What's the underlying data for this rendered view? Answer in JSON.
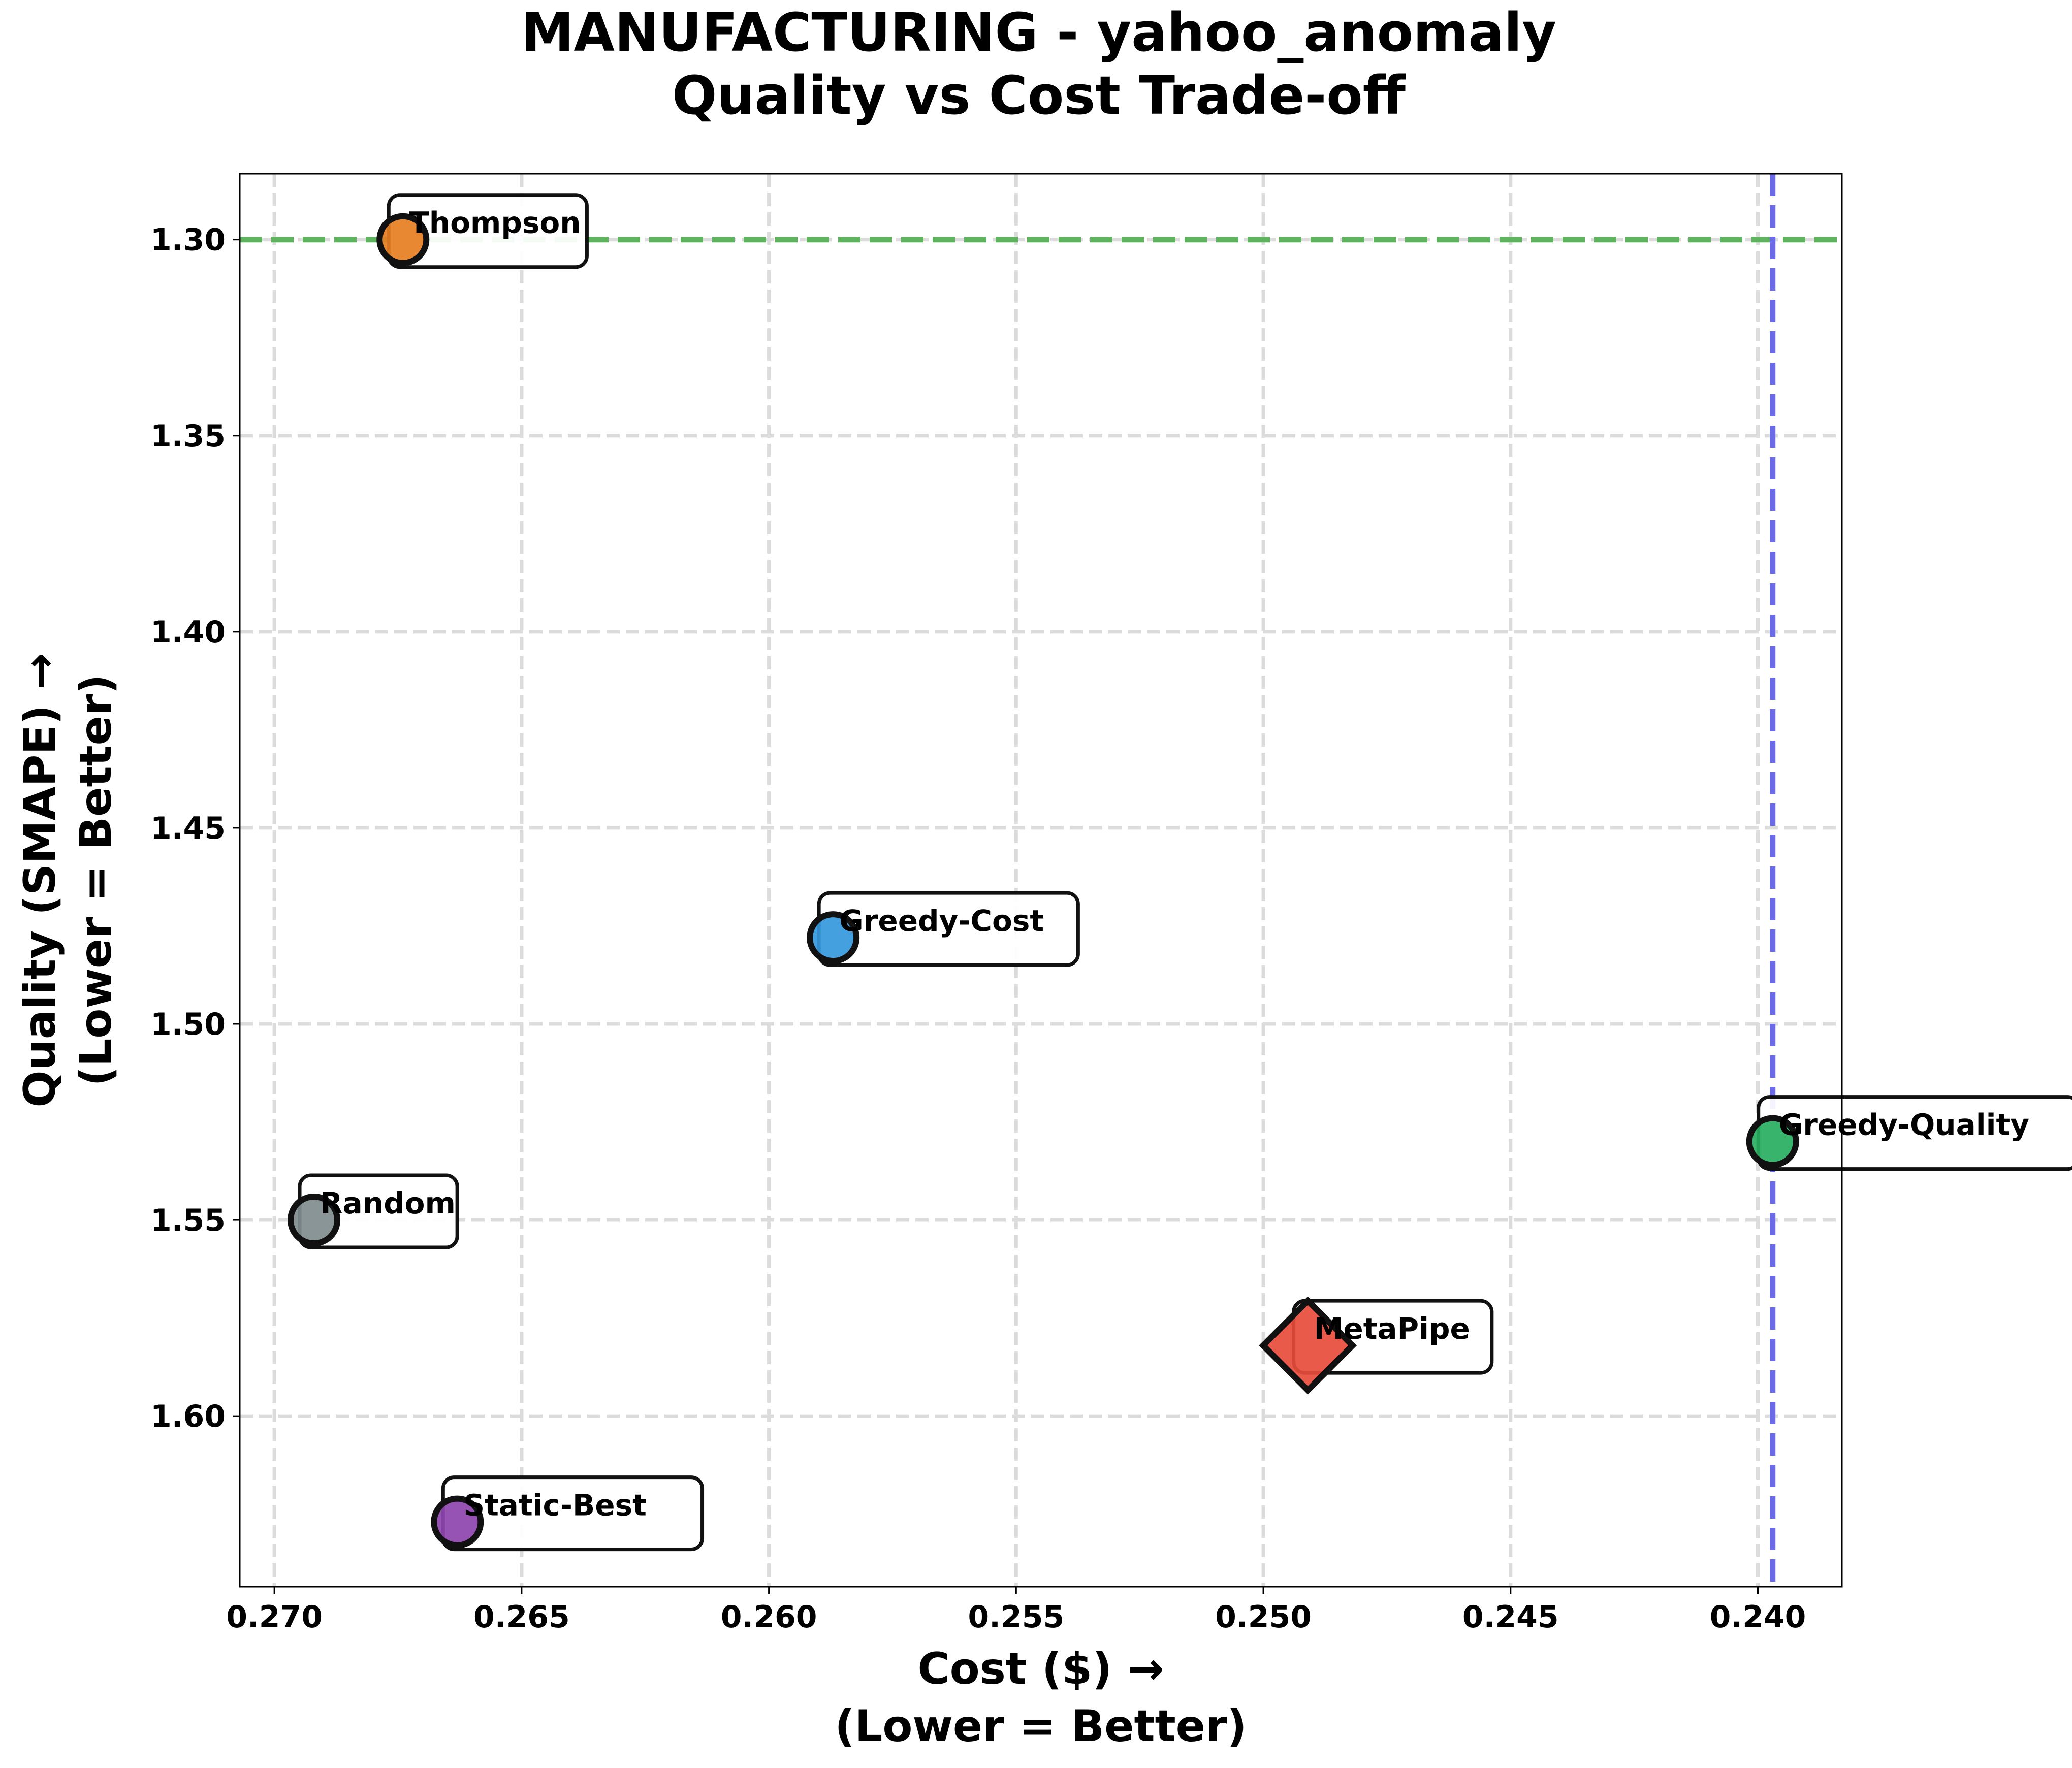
{
  "chart_data": {
    "type": "scatter",
    "title_line1": "MANUFACTURING - yahoo_anomaly",
    "title_line2": "Quality vs Cost Trade-off",
    "xlabel_line1": "Cost ($) →",
    "xlabel_line2": "(Lower = Better)",
    "ylabel_line1": "Quality (SMAPE) →",
    "ylabel_line2": "(Lower = Better)",
    "xlim": [
      0.2707,
      0.2383
    ],
    "ylim": [
      1.6435,
      1.2832
    ],
    "x_inverted": true,
    "y_inverted": true,
    "grid": true,
    "xticks": [
      0.27,
      0.265,
      0.26,
      0.255,
      0.25,
      0.245,
      0.24
    ],
    "xtick_labels": [
      "0.270",
      "0.265",
      "0.260",
      "0.255",
      "0.250",
      "0.245",
      "0.240"
    ],
    "yticks": [
      1.3,
      1.35,
      1.4,
      1.45,
      1.5,
      1.55,
      1.6
    ],
    "ytick_labels": [
      "1.30",
      "1.35",
      "1.40",
      "1.45",
      "1.50",
      "1.55",
      "1.60"
    ],
    "reference_lines": [
      {
        "orientation": "horizontal",
        "value": 1.3,
        "color": "#5fb35f"
      },
      {
        "orientation": "vertical",
        "value": 0.2397,
        "color": "#6b6be8"
      }
    ],
    "points": [
      {
        "name": "Thompson",
        "x": 0.2674,
        "y": 1.3,
        "color": "#e67e22",
        "marker": "circle"
      },
      {
        "name": "Greedy-Cost",
        "x": 0.2587,
        "y": 1.478,
        "color": "#3498db",
        "marker": "circle"
      },
      {
        "name": "Greedy-Quality",
        "x": 0.2397,
        "y": 1.53,
        "color": "#27ae60",
        "marker": "circle"
      },
      {
        "name": "Random",
        "x": 0.2692,
        "y": 1.55,
        "color": "#7f8c8d",
        "marker": "circle"
      },
      {
        "name": "MetaPipe",
        "x": 0.2491,
        "y": 1.582,
        "color": "#e74c3c",
        "marker": "diamond"
      },
      {
        "name": "Static-Best",
        "x": 0.2663,
        "y": 1.627,
        "color": "#8e44ad",
        "marker": "circle"
      }
    ]
  }
}
